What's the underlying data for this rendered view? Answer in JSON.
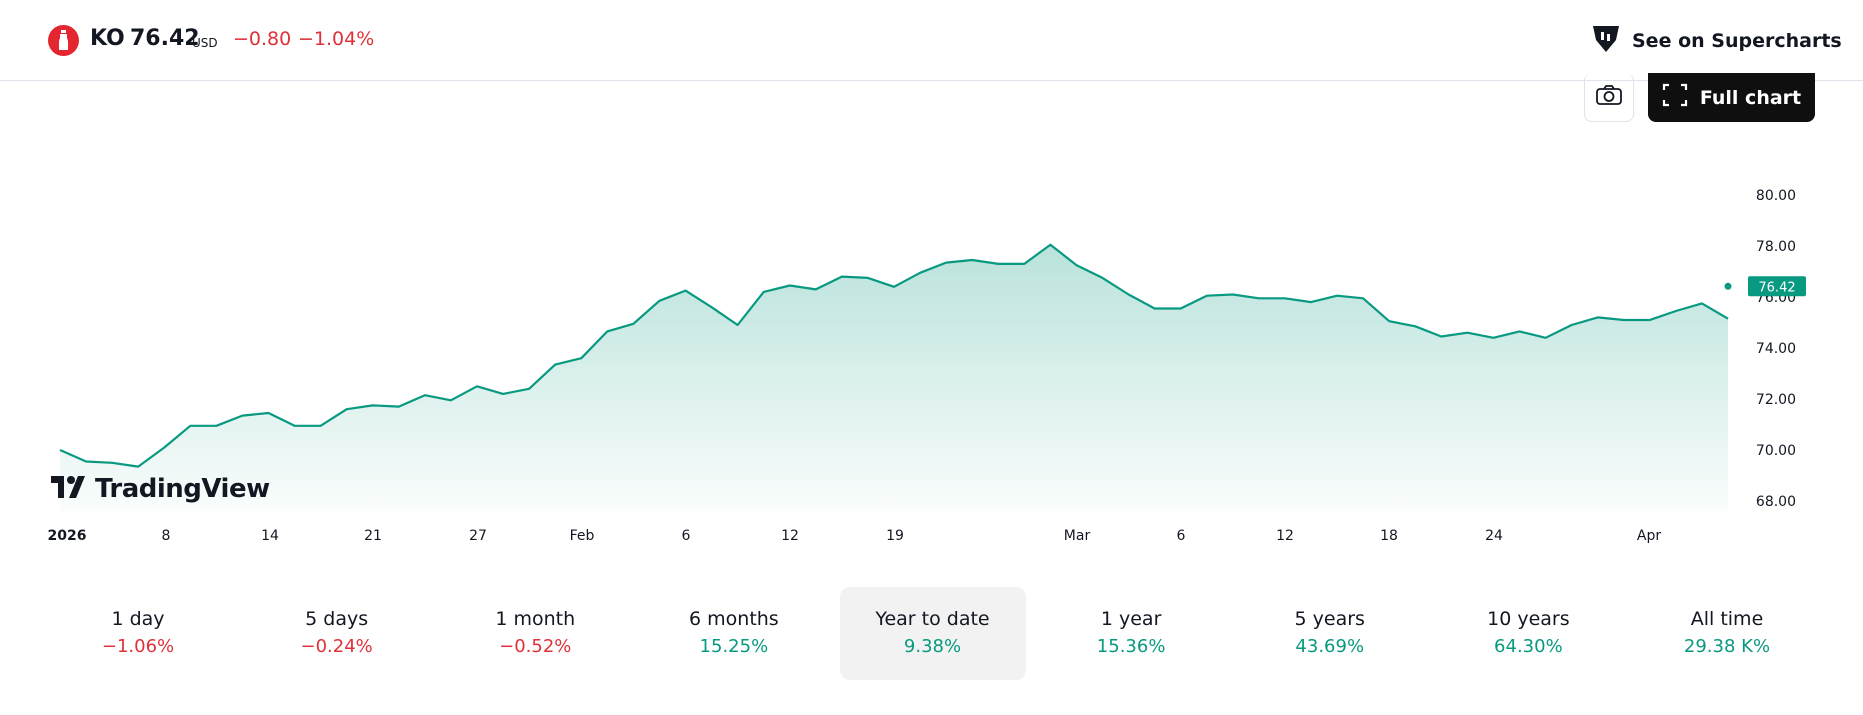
{
  "header": {
    "symbol": "KO",
    "price": "76.42",
    "currency": "USD",
    "change": "−0.80",
    "change_pct": "−1.04%",
    "logo_icon": "coca-cola-logo-icon",
    "supercharts_label": "See on Supercharts"
  },
  "toolbar": {
    "camera_icon": "camera-icon",
    "full_chart_label": "Full chart"
  },
  "watermark": "TradingView",
  "colors": {
    "line": "#089981",
    "negative": "#e0313a",
    "positive": "#089981",
    "badge": "#089981"
  },
  "chart_data": {
    "type": "area",
    "x_tick_labels": [
      "2026",
      "8",
      "14",
      "21",
      "27",
      "Feb",
      "6",
      "12",
      "19",
      "Mar",
      "6",
      "12",
      "18",
      "24",
      "Apr"
    ],
    "y_tick_labels": [
      "80.00",
      "78.00",
      "76.00",
      "74.00",
      "72.00",
      "70.00",
      "68.00"
    ],
    "ylim": [
      67.9,
      81.4
    ],
    "y_ticks": [
      80,
      78,
      76,
      74,
      72,
      70,
      68
    ],
    "last_price_label": "76.42",
    "series": [
      {
        "values": [
          70.0,
          69.55,
          69.5,
          69.35,
          70.1,
          70.95,
          70.95,
          71.35,
          71.45,
          70.95,
          70.95,
          71.6,
          71.75,
          71.7,
          72.15,
          71.95,
          72.5,
          72.2,
          72.4,
          73.35,
          73.6,
          74.65,
          74.95,
          75.85,
          76.25,
          75.6,
          74.9,
          76.2,
          76.45,
          76.3,
          76.8,
          76.75,
          76.4,
          76.95,
          77.35,
          77.45,
          77.3,
          77.3,
          78.05,
          77.25,
          76.75,
          76.1,
          75.55,
          75.55,
          76.05,
          76.1,
          75.95,
          75.95,
          75.8,
          76.05,
          75.95,
          75.05,
          74.85,
          74.45,
          74.6,
          74.4,
          74.65,
          74.4,
          74.9,
          75.2,
          75.1,
          75.1,
          75.45,
          75.75,
          75.15
        ],
        "last": 76.42
      }
    ]
  },
  "periods": [
    {
      "label": "1 day",
      "value": "−1.06%",
      "sign": "neg"
    },
    {
      "label": "5 days",
      "value": "−0.24%",
      "sign": "neg"
    },
    {
      "label": "1 month",
      "value": "−0.52%",
      "sign": "neg"
    },
    {
      "label": "6 months",
      "value": "15.25%",
      "sign": "pos"
    },
    {
      "label": "Year to date",
      "value": "9.38%",
      "sign": "pos",
      "active": true
    },
    {
      "label": "1 year",
      "value": "15.36%",
      "sign": "pos"
    },
    {
      "label": "5 years",
      "value": "43.69%",
      "sign": "pos"
    },
    {
      "label": "10 years",
      "value": "64.30%",
      "sign": "pos"
    },
    {
      "label": "All time",
      "value": "29.38 K%",
      "sign": "pos"
    }
  ]
}
